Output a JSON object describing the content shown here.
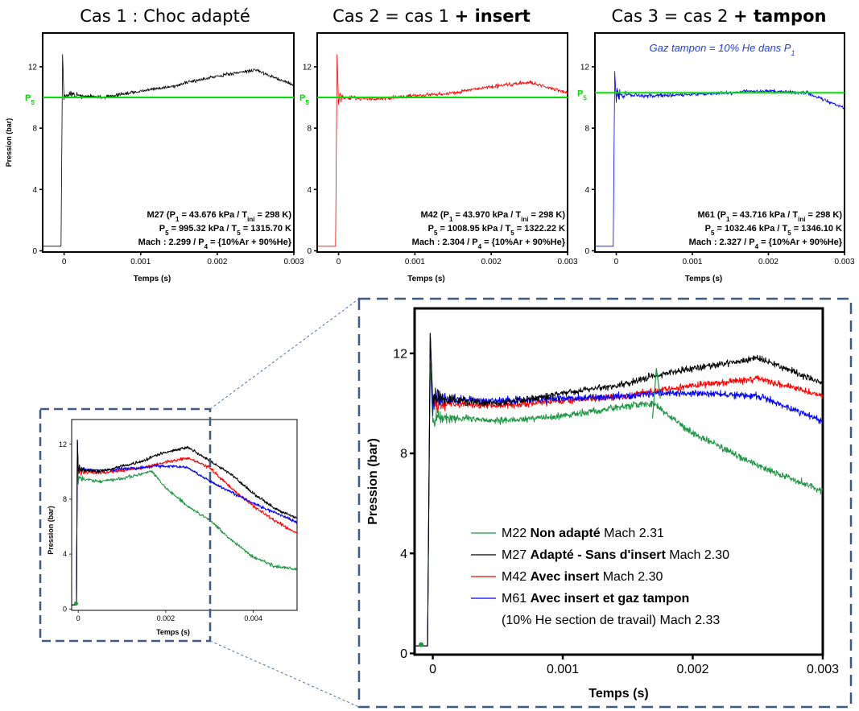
{
  "colors": {
    "black": "#000000",
    "red": "#ff0000",
    "blue": "#0000ff",
    "green": "#1a9641",
    "p5_line": "#00e000",
    "frame": "#3d5a80",
    "buffer_note": "#1f3fe0"
  },
  "panels": [
    {
      "title_plain": "Cas 1 : Choc adapté",
      "title_bold": "",
      "ylabel": "Pression (bar)",
      "xlabel": "Temps (s)",
      "p5_label": "P",
      "p5_sub": "5",
      "p5_value": 10.0,
      "run": "M27",
      "color": "#000000",
      "line1": {
        "a": "M27 (P",
        "s1": "1",
        "b": " = 43.676 kPa / T",
        "s2": "ini",
        "c": " = 298 K)"
      },
      "line2": {
        "a": "P",
        "s1": "5",
        "b": " = 995.32 kPa  / T",
        "s2": "5",
        "c": " = 1315.70 K"
      },
      "line3": {
        "a": "Mach : 2.299 / P",
        "s1": "4",
        "b": " = {10%Ar + 90%He}"
      }
    },
    {
      "title_plain": "Cas 2 = cas 1 ",
      "title_bold": "+ insert",
      "ylabel": "",
      "xlabel": "Temps (s)",
      "p5_label": "P",
      "p5_sub": "5",
      "p5_value": 10.0,
      "run": "M42",
      "color": "#ff0000",
      "line1": {
        "a": "M42 (P",
        "s1": "1",
        "b": " = 43.970 kPa / T",
        "s2": "ini",
        "c": " = 298 K)"
      },
      "line2": {
        "a": "P",
        "s1": "5",
        "b": " = 1008.95 kPa  / T",
        "s2": "5",
        "c": " = 1322.22 K"
      },
      "line3": {
        "a": "Mach : 2.304 / P",
        "s1": "4",
        "b": " = {10%Ar + 90%He}"
      }
    },
    {
      "title_plain": "Cas 3 = cas 2 ",
      "title_bold": "+ tampon",
      "ylabel": "",
      "xlabel": "Temps (s)",
      "p5_label": "P",
      "p5_sub": "5",
      "p5_value": 10.3,
      "run": "M61",
      "color": "#0000ff",
      "note": "Gaz tampon = 10% He dans P",
      "note_sub": "1",
      "line1": {
        "a": "M61 (P",
        "s1": "1",
        "b": " = 43.716 kPa / T",
        "s2": "ini",
        "c": " = 298 K)"
      },
      "line2": {
        "a": "P",
        "s1": "5",
        "b": " = 1032.46 kPa  / T",
        "s2": "5",
        "c": " = 1346.10 K"
      },
      "line3": {
        "a": "Mach : 2.327 / P",
        "s1": "4",
        "b": " = {10%Ar + 90%He}"
      }
    }
  ],
  "small_plot": {
    "ylabel": "Pression (bar)",
    "xlabel": "Temps (s)",
    "xticks": [
      "0",
      "0.002",
      "0.004"
    ],
    "yticks": [
      "0",
      "4",
      "8",
      "12"
    ]
  },
  "big_plot": {
    "ylabel": "Pression (bar)",
    "xlabel": "Temps (s)",
    "xticks": [
      "0",
      "0.001",
      "0.002",
      "0.003"
    ],
    "yticks": [
      "0",
      "4",
      "8",
      "12"
    ],
    "legend": [
      {
        "run": "M22",
        "bold": "Non adapté",
        "rest": " Mach 2.31",
        "color": "#1a9641"
      },
      {
        "run": "M27",
        "bold": "Adapté - Sans d'insert",
        "rest": " Mach 2.30",
        "color": "#000000"
      },
      {
        "run": "M42",
        "bold": "Avec insert",
        "rest": " Mach 2.30",
        "color": "#ff0000"
      },
      {
        "run": "M61",
        "bold": "Avec insert et gaz tampon",
        "rest": "",
        "color": "#0000ff"
      }
    ],
    "legend_extra": "(10% He section de travail) Mach 2.33"
  },
  "top_ticks": {
    "xticks": [
      "0",
      "0.001",
      "0.002",
      "0.003"
    ],
    "yticks": [
      "0",
      "4",
      "8",
      "12"
    ]
  },
  "chart_data": {
    "type": "line",
    "title": "",
    "xlabel": "Temps (s)",
    "ylabel": "Pression (bar)",
    "xlim": [
      0,
      0.003
    ],
    "ylim": [
      0,
      13
    ],
    "x": [
      0,
      0.0005,
      0.001,
      0.0015,
      0.0017,
      0.002,
      0.0025,
      0.003
    ],
    "series": [
      {
        "name": "M22",
        "values": [
          9.5,
          9.3,
          9.5,
          9.9,
          10.0,
          8.8,
          7.5,
          6.5
        ]
      },
      {
        "name": "M27",
        "values": [
          10.2,
          10.0,
          10.4,
          10.8,
          11.1,
          11.4,
          11.8,
          10.8
        ]
      },
      {
        "name": "M42",
        "values": [
          10.0,
          9.9,
          10.1,
          10.3,
          10.5,
          10.7,
          11.0,
          10.3
        ]
      },
      {
        "name": "M61",
        "values": [
          10.2,
          10.1,
          10.2,
          10.3,
          10.4,
          10.4,
          10.3,
          9.3
        ]
      }
    ]
  }
}
